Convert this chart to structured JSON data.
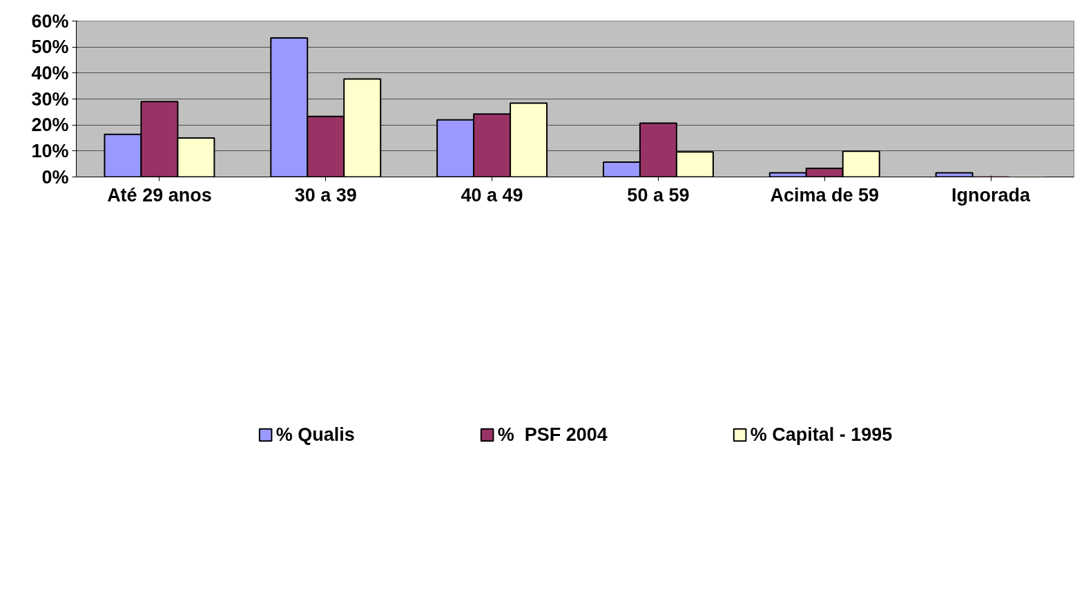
{
  "chart_data": {
    "type": "bar",
    "categories": [
      "Até 29 anos",
      "30 a 39",
      "40 a 49",
      "50 a 59",
      "Acima de 59",
      "Ignorada"
    ],
    "series": [
      {
        "name": "% Qualis",
        "color": "#9999ff",
        "values": [
          16.4,
          53.5,
          22,
          5.7,
          1.6,
          1.6
        ]
      },
      {
        "name": "%  PSF 2004",
        "color": "#993366",
        "values": [
          29,
          23.3,
          24.2,
          20.7,
          3.3,
          0
        ]
      },
      {
        "name": "% Capital - 1995",
        "color": "#ffffcc",
        "values": [
          15,
          37.7,
          28.4,
          9.6,
          9.9,
          0
        ]
      }
    ],
    "ylim": [
      0,
      60
    ],
    "yticks": [
      {
        "value": 0,
        "label": "0%"
      },
      {
        "value": 10,
        "label": "10%"
      },
      {
        "value": 20,
        "label": "20%"
      },
      {
        "value": 30,
        "label": "30%"
      },
      {
        "value": 40,
        "label": "40%"
      },
      {
        "value": 50,
        "label": "50%"
      },
      {
        "value": 60,
        "label": "60%"
      }
    ],
    "grid": "y",
    "legend": "bottom"
  }
}
